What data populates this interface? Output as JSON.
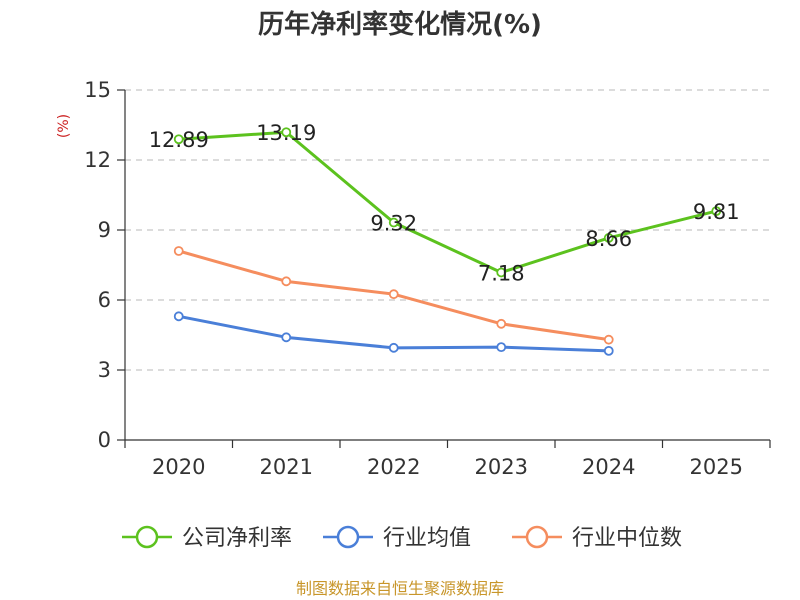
{
  "chart_data": {
    "type": "line",
    "title": "历年净利率变化情况(%)",
    "ylabel": "(%)",
    "xlabel": "",
    "categories": [
      "2020",
      "2021",
      "2022",
      "2023",
      "2024",
      "2025"
    ],
    "ylim": [
      0,
      15
    ],
    "yticks": [
      0,
      3,
      6,
      9,
      12,
      15
    ],
    "grid": "horizontal dashed",
    "legend_position": "bottom",
    "series": [
      {
        "name": "公司净利率",
        "color": "#5cc21e",
        "values": [
          12.89,
          13.19,
          9.32,
          7.18,
          8.66,
          9.81
        ],
        "labels": [
          "12.89",
          "13.19",
          "9.32",
          "7.18",
          "8.66",
          "9.81"
        ]
      },
      {
        "name": "行业均值",
        "color": "#4a7fd8",
        "values": [
          5.3,
          4.4,
          3.95,
          3.98,
          3.82,
          null
        ]
      },
      {
        "name": "行业中位数",
        "color": "#f58d5e",
        "values": [
          8.1,
          6.8,
          6.25,
          4.98,
          4.3,
          null
        ]
      }
    ]
  },
  "colors": {
    "ylabel": "#cc2222",
    "source": "#c8962a",
    "grid": "#c8c8c8",
    "axis": "#333333"
  },
  "footer": {
    "source": "制图数据来自恒生聚源数据库"
  }
}
